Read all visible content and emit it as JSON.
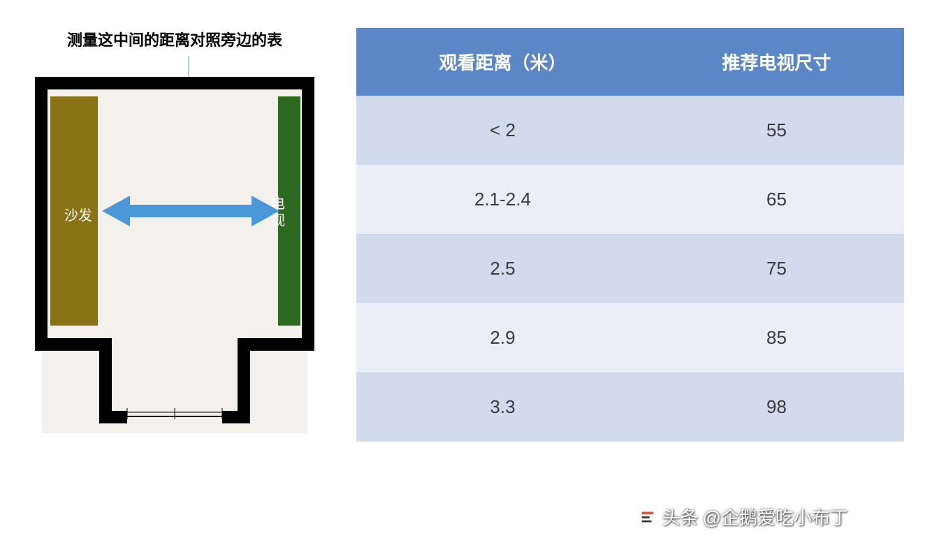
{
  "diagram": {
    "title": "测量这中间的距离对照旁边的表",
    "sofa_label": "沙发",
    "tv_label": "电视",
    "colors": {
      "wall": "#000000",
      "floor": "#f4f1ec",
      "sofa": "#8a7316",
      "tv": "#2b6a1f",
      "arrow": "#4a98d8",
      "pointer": "#5b9bd5"
    },
    "arrow": {
      "stroke_width": 18
    }
  },
  "table": {
    "type": "table",
    "header_bg": "#5b87c7",
    "header_color": "#ffffff",
    "row_odd_bg": "#d2daed",
    "row_even_bg": "#eaeef7",
    "text_color": "#3a3a3a",
    "header_fontsize": 26,
    "cell_fontsize": 26,
    "columns": [
      "观看距离（米）",
      "推荐电视尺寸"
    ],
    "rows": [
      [
        "< 2",
        "55"
      ],
      [
        "2.1-2.4",
        "65"
      ],
      [
        "2.5",
        "75"
      ],
      [
        "2.9",
        "85"
      ],
      [
        "3.3",
        "98"
      ]
    ]
  },
  "watermark": {
    "prefix": "头条",
    "text": "@企鹅爱吃小布丁",
    "color": "#ffffff"
  }
}
